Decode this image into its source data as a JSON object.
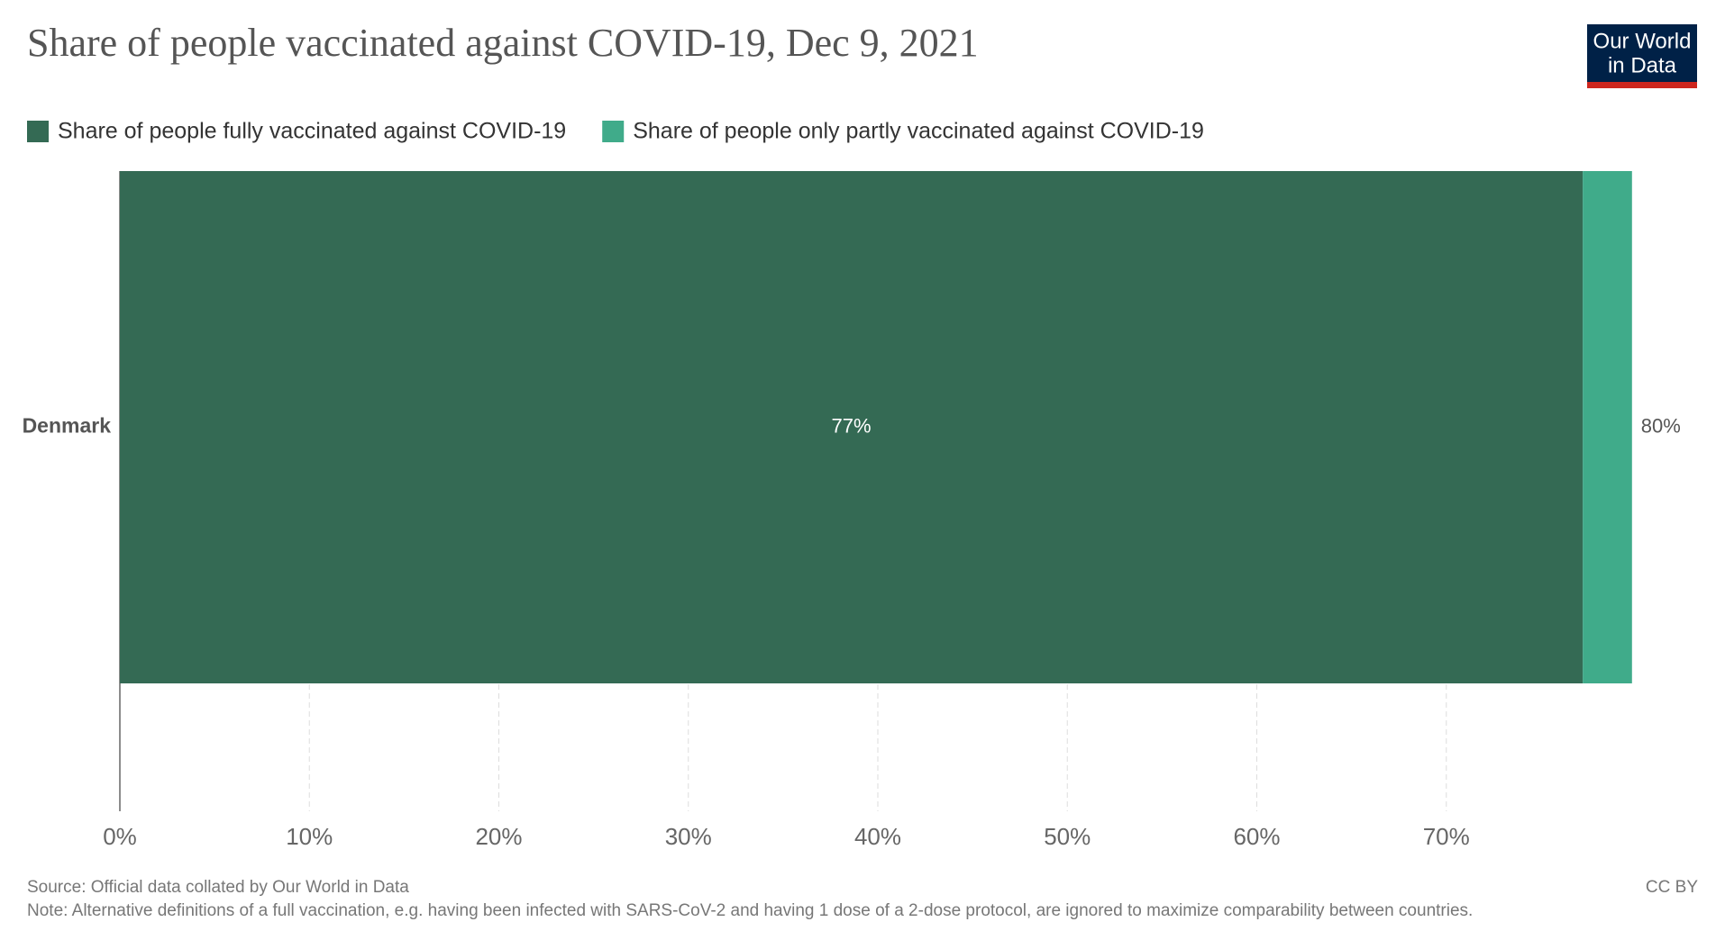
{
  "chart_data": {
    "type": "stacked_barh",
    "title": "Share of people vaccinated against COVID-19, Dec 9, 2021",
    "categories": [
      "Denmark"
    ],
    "series": [
      {
        "name": "Share of people fully vaccinated against COVID-19",
        "color": "#346a54",
        "values": [
          77.2
        ],
        "value_labels": [
          "77%"
        ]
      },
      {
        "name": "Share of people only partly vaccinated against COVID-19",
        "color": "#40ab8a",
        "values": [
          2.6
        ]
      }
    ],
    "totals": [
      79.8
    ],
    "total_labels": [
      "80%"
    ],
    "xlim": [
      0,
      80
    ],
    "xticks": [
      {
        "value": 0,
        "label": "0%"
      },
      {
        "value": 10,
        "label": "10%"
      },
      {
        "value": 20,
        "label": "20%"
      },
      {
        "value": 30,
        "label": "30%"
      },
      {
        "value": 40,
        "label": "40%"
      },
      {
        "value": 50,
        "label": "50%"
      },
      {
        "value": 60,
        "label": "60%"
      },
      {
        "value": 70,
        "label": "70%"
      }
    ],
    "grid": true,
    "source": "Source: Official data collated by Our World in Data",
    "note": "Note: Alternative definitions of a full vaccination, e.g. having been infected with SARS-CoV-2 and having 1 dose of a 2-dose protocol, are ignored to maximize comparability between countries.",
    "license": "CC BY",
    "logo": {
      "line1": "Our World",
      "line2": "in Data"
    }
  }
}
